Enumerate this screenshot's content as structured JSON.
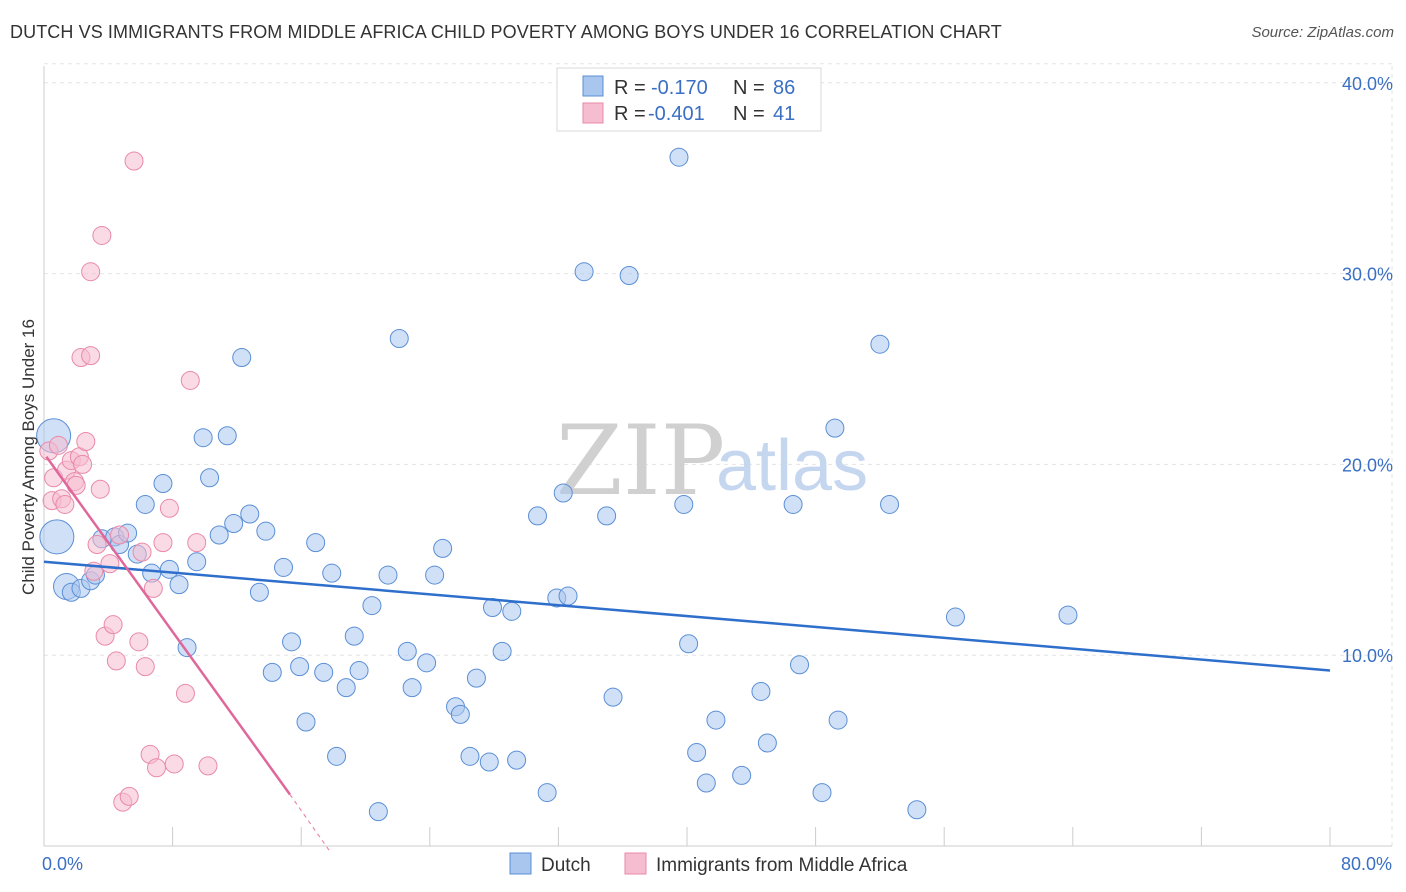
{
  "title": "DUTCH VS IMMIGRANTS FROM MIDDLE AFRICA CHILD POVERTY AMONG BOYS UNDER 16 CORRELATION CHART",
  "source": "Source: ZipAtlas.com",
  "watermark": {
    "zip": "ZIP",
    "atlas": "atlas"
  },
  "colors": {
    "dutch_fill": "#a9c6ee",
    "dutch_stroke": "#5b8fd6",
    "dutch_line": "#2f6fcc",
    "imm_fill": "#f6bcd0",
    "imm_stroke": "#e98aaa",
    "imm_line": "#e0679a",
    "tick": "#3a6fc4",
    "grid": "#e4e4e4"
  },
  "legend": {
    "rows": [
      {
        "r_label": "R =",
        "r_value": "-0.170",
        "n_label": "N =",
        "n_value": "86"
      },
      {
        "r_label": "R =",
        "r_value": "-0.401",
        "n_label": "N =",
        "n_value": "41"
      }
    ]
  },
  "chart_data": {
    "type": "scatter",
    "title": "DUTCH VS IMMIGRANTS FROM MIDDLE AFRICA CHILD POVERTY AMONG BOYS UNDER 16 CORRELATION CHART",
    "xlabel": "",
    "ylabel": "Child Poverty Among Boys Under 16",
    "xlim": [
      0,
      80
    ],
    "ylim": [
      0,
      42
    ],
    "x_tick_labels": [
      "0.0%",
      "80.0%"
    ],
    "y_ticks": [
      10,
      20,
      30,
      40
    ],
    "y_tick_labels": [
      "10.0%",
      "20.0%",
      "30.0%",
      "40.0%"
    ],
    "grid": true,
    "series": [
      {
        "name": "Dutch",
        "r": -0.17,
        "n": 86,
        "trend": {
          "x": [
            0,
            80
          ],
          "y": [
            14.9,
            9.2
          ]
        },
        "points": [
          [
            0.6,
            21.5,
            3
          ],
          [
            0.8,
            16.2,
            3
          ],
          [
            1.4,
            13.6,
            2
          ],
          [
            1.7,
            13.3,
            1
          ],
          [
            2.3,
            13.5,
            1
          ],
          [
            2.9,
            13.9,
            1
          ],
          [
            3.2,
            14.2,
            1
          ],
          [
            3.6,
            16.1,
            1
          ],
          [
            4.4,
            16.2,
            1
          ],
          [
            4.7,
            15.8,
            1
          ],
          [
            5.2,
            16.4,
            1
          ],
          [
            5.8,
            15.3,
            1
          ],
          [
            6.3,
            17.9,
            1
          ],
          [
            6.7,
            14.3,
            1
          ],
          [
            7.4,
            19.0,
            1
          ],
          [
            7.8,
            14.5,
            1
          ],
          [
            8.4,
            13.7,
            1
          ],
          [
            8.9,
            10.4,
            1
          ],
          [
            9.5,
            14.9,
            1
          ],
          [
            9.9,
            21.4,
            1
          ],
          [
            10.3,
            19.3,
            1
          ],
          [
            10.9,
            16.3,
            1
          ],
          [
            11.4,
            21.5,
            1
          ],
          [
            11.8,
            16.9,
            1
          ],
          [
            12.3,
            25.6,
            1
          ],
          [
            12.8,
            17.4,
            1
          ],
          [
            13.4,
            13.3,
            1
          ],
          [
            13.8,
            16.5,
            1
          ],
          [
            14.2,
            9.1,
            1
          ],
          [
            14.9,
            14.6,
            1
          ],
          [
            15.4,
            10.7,
            1
          ],
          [
            15.9,
            9.4,
            1
          ],
          [
            16.3,
            6.5,
            1
          ],
          [
            16.9,
            15.9,
            1
          ],
          [
            17.4,
            9.1,
            1
          ],
          [
            17.9,
            14.3,
            1
          ],
          [
            18.2,
            4.7,
            1
          ],
          [
            18.8,
            8.3,
            1
          ],
          [
            19.3,
            11.0,
            1
          ],
          [
            19.6,
            9.2,
            1
          ],
          [
            20.4,
            12.6,
            1
          ],
          [
            20.8,
            1.8,
            1
          ],
          [
            21.4,
            14.2,
            1
          ],
          [
            22.1,
            26.6,
            1
          ],
          [
            22.6,
            10.2,
            1
          ],
          [
            22.9,
            8.3,
            1
          ],
          [
            23.8,
            9.6,
            1
          ],
          [
            24.3,
            14.2,
            1
          ],
          [
            24.8,
            15.6,
            1
          ],
          [
            25.6,
            7.3,
            1
          ],
          [
            25.9,
            6.9,
            1
          ],
          [
            26.5,
            4.7,
            1
          ],
          [
            26.9,
            8.8,
            1
          ],
          [
            27.7,
            4.4,
            1
          ],
          [
            27.9,
            12.5,
            1
          ],
          [
            28.5,
            10.2,
            1
          ],
          [
            29.1,
            12.3,
            1
          ],
          [
            29.4,
            4.5,
            1
          ],
          [
            30.7,
            17.3,
            1
          ],
          [
            31.3,
            2.8,
            1
          ],
          [
            31.9,
            13.0,
            1
          ],
          [
            32.3,
            18.5,
            1
          ],
          [
            32.6,
            13.1,
            1
          ],
          [
            33.6,
            30.1,
            1
          ],
          [
            35.0,
            17.3,
            1
          ],
          [
            35.4,
            7.8,
            1
          ],
          [
            36.4,
            29.9,
            1
          ],
          [
            39.5,
            36.1,
            1
          ],
          [
            39.8,
            17.9,
            1
          ],
          [
            40.1,
            10.6,
            1
          ],
          [
            40.6,
            4.9,
            1
          ],
          [
            41.2,
            3.3,
            1
          ],
          [
            41.8,
            6.6,
            1
          ],
          [
            43.4,
            3.7,
            1
          ],
          [
            44.6,
            8.1,
            1
          ],
          [
            45.0,
            5.4,
            1
          ],
          [
            46.6,
            17.9,
            1
          ],
          [
            47.0,
            9.5,
            1
          ],
          [
            48.4,
            2.8,
            1
          ],
          [
            49.2,
            21.9,
            1
          ],
          [
            49.4,
            6.6,
            1
          ],
          [
            52.0,
            26.3,
            1
          ],
          [
            52.6,
            17.9,
            1
          ],
          [
            54.3,
            1.9,
            1
          ],
          [
            56.7,
            12.0,
            1
          ],
          [
            63.7,
            12.1,
            1
          ]
        ]
      },
      {
        "name": "Immigrants from Middle Africa",
        "r": -0.401,
        "n": 41,
        "trend": {
          "x": [
            0.15,
            15.3
          ],
          "y": [
            20.4,
            2.7
          ],
          "dash_to": {
            "x": 17.8,
            "y": -0.3
          }
        },
        "points": [
          [
            0.3,
            20.7,
            1
          ],
          [
            0.5,
            18.1,
            1
          ],
          [
            0.6,
            19.3,
            1
          ],
          [
            0.9,
            21.0,
            1
          ],
          [
            1.1,
            18.2,
            1
          ],
          [
            1.4,
            19.7,
            1
          ],
          [
            1.7,
            20.2,
            1
          ],
          [
            1.9,
            19.1,
            1
          ],
          [
            2.2,
            20.4,
            1
          ],
          [
            2.3,
            25.6,
            1
          ],
          [
            2.4,
            20.0,
            1
          ],
          [
            2.6,
            21.2,
            1
          ],
          [
            2.9,
            25.7,
            1
          ],
          [
            2.9,
            30.1,
            1
          ],
          [
            3.1,
            14.4,
            1
          ],
          [
            3.3,
            15.8,
            1
          ],
          [
            3.5,
            18.7,
            1
          ],
          [
            3.6,
            32.0,
            1
          ],
          [
            3.8,
            11.0,
            1
          ],
          [
            4.1,
            14.8,
            1
          ],
          [
            4.3,
            11.6,
            1
          ],
          [
            4.5,
            9.7,
            1
          ],
          [
            4.7,
            16.3,
            1
          ],
          [
            4.9,
            2.3,
            1
          ],
          [
            5.3,
            2.6,
            1
          ],
          [
            5.6,
            35.9,
            1
          ],
          [
            5.9,
            10.7,
            1
          ],
          [
            6.1,
            15.4,
            1
          ],
          [
            6.3,
            9.4,
            1
          ],
          [
            6.6,
            4.8,
            1
          ],
          [
            6.8,
            13.5,
            1
          ],
          [
            7.0,
            4.1,
            1
          ],
          [
            7.4,
            15.9,
            1
          ],
          [
            7.8,
            17.7,
            1
          ],
          [
            8.1,
            4.3,
            1
          ],
          [
            8.8,
            8.0,
            1
          ],
          [
            9.1,
            24.4,
            1
          ],
          [
            9.5,
            15.9,
            1
          ],
          [
            10.2,
            4.2,
            1
          ],
          [
            1.3,
            17.9,
            1
          ],
          [
            2.0,
            18.9,
            1
          ]
        ]
      }
    ]
  },
  "bottom_legend": {
    "dutch": "Dutch",
    "imm": "Immigrants from Middle Africa"
  }
}
